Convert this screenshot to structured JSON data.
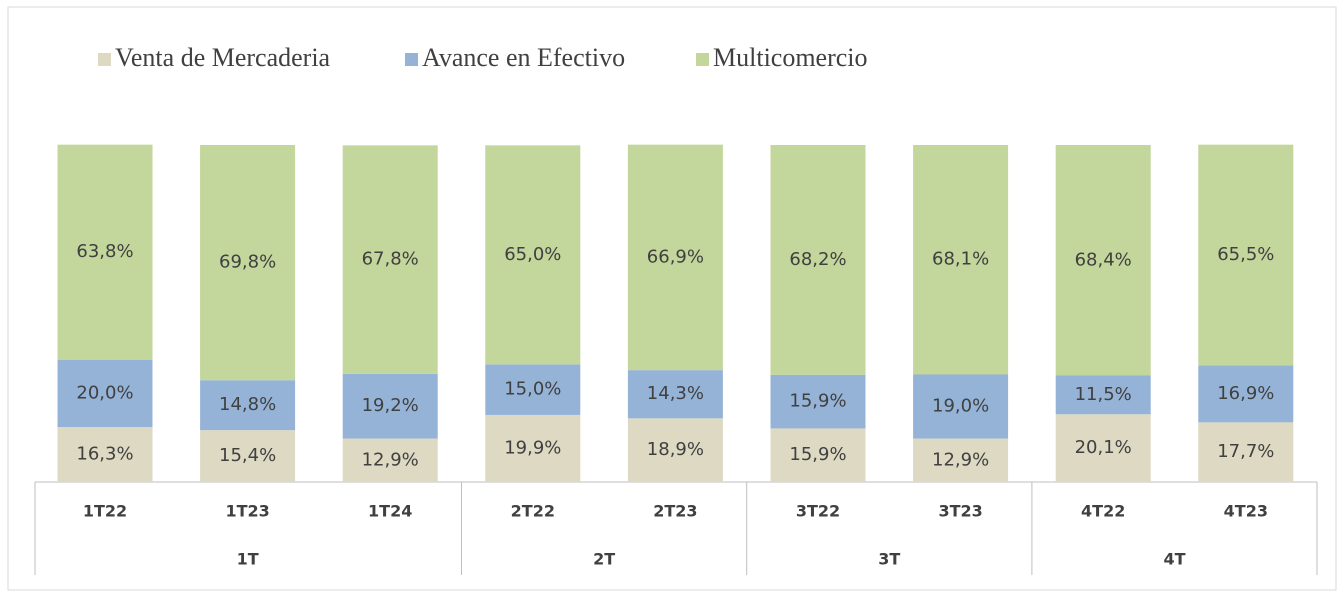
{
  "chart_data": {
    "type": "stacked_bar",
    "category_groups": [
      {
        "label": "1T",
        "categories": [
          "1T22",
          "1T23",
          "1T24"
        ]
      },
      {
        "label": "2T",
        "categories": [
          "2T22",
          "2T23"
        ]
      },
      {
        "label": "3T",
        "categories": [
          "3T22",
          "3T23"
        ]
      },
      {
        "label": "4T",
        "categories": [
          "4T22",
          "4T23"
        ]
      }
    ],
    "series": [
      {
        "name": "Venta de Mercaderia",
        "color": "#ddd9c3",
        "values": [
          16.3,
          15.4,
          12.9,
          19.9,
          18.9,
          15.9,
          12.9,
          20.1,
          17.7
        ],
        "value_labels": [
          "16,3%",
          "15,4%",
          "12,9%",
          "19,9%",
          "18,9%",
          "15,9%",
          "12,9%",
          "20,1%",
          "17,7%"
        ]
      },
      {
        "name": "Avance en Efectivo",
        "color": "#95b3d7",
        "values": [
          20.0,
          14.8,
          19.2,
          15.0,
          14.3,
          15.9,
          19.0,
          11.5,
          16.9
        ],
        "value_labels": [
          "20,0%",
          "14,8%",
          "19,2%",
          "15,0%",
          "14,3%",
          "15,9%",
          "19,0%",
          "11,5%",
          "16,9%"
        ]
      },
      {
        "name": "Multicomercio",
        "color": "#c3d69b",
        "values": [
          63.8,
          69.8,
          67.8,
          65.0,
          66.9,
          68.2,
          68.1,
          68.4,
          65.5
        ],
        "value_labels": [
          "63,8%",
          "69,8%",
          "67,8%",
          "65,0%",
          "66,9%",
          "68,2%",
          "68,1%",
          "68,4%",
          "65,5%"
        ]
      }
    ],
    "legend": "top-left"
  }
}
